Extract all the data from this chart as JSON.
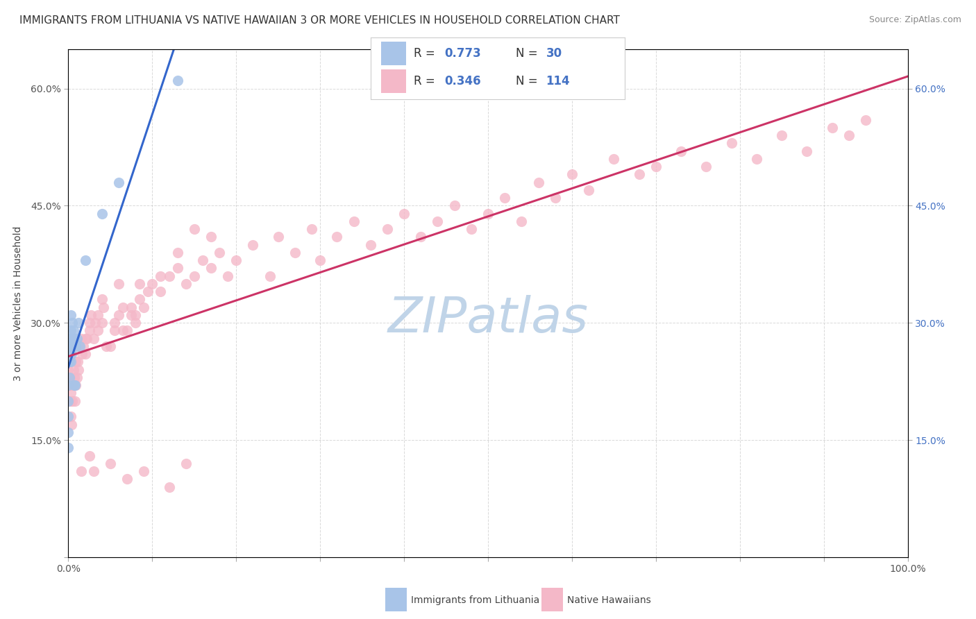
{
  "title": "IMMIGRANTS FROM LITHUANIA VS NATIVE HAWAIIAN 3 OR MORE VEHICLES IN HOUSEHOLD CORRELATION CHART",
  "source": "Source: ZipAtlas.com",
  "ylabel": "3 or more Vehicles in Household",
  "xlim": [
    0.0,
    1.0
  ],
  "ylim": [
    0.0,
    0.65
  ],
  "xticks": [
    0.0,
    0.1,
    0.2,
    0.3,
    0.4,
    0.5,
    0.6,
    0.7,
    0.8,
    0.9,
    1.0
  ],
  "xticklabels_bottom": [
    "0.0%",
    "",
    "",
    "",
    "",
    "",
    "",
    "",
    "",
    "",
    "100.0%"
  ],
  "yticks_left": [
    0.0,
    0.15,
    0.3,
    0.45,
    0.6
  ],
  "yticklabels_left": [
    "",
    "15.0%",
    "30.0%",
    "45.0%",
    "60.0%"
  ],
  "yticks_right": [
    0.15,
    0.3,
    0.45,
    0.6
  ],
  "yticklabels_right": [
    "15.0%",
    "30.0%",
    "45.0%",
    "60.0%"
  ],
  "legend_blue_R": "0.773",
  "legend_blue_N": "30",
  "legend_pink_R": "0.346",
  "legend_pink_N": "114",
  "legend_label_blue": "Immigrants from Lithuania",
  "legend_label_pink": "Native Hawaiians",
  "blue_dot_color": "#a8c4e8",
  "pink_dot_color": "#f4b8c8",
  "blue_line_color": "#3366cc",
  "pink_line_color": "#cc3366",
  "watermark": "ZIPatlas",
  "watermark_color": "#c0d4e8",
  "watermark_fontsize": 52,
  "background_color": "#ffffff",
  "grid_color": "#d0d0d0",
  "title_fontsize": 11,
  "tick_fontsize": 10,
  "stat_text_color": "#4472c4",
  "blue_scatter_x": [
    0.0,
    0.0,
    0.0,
    0.0,
    0.0,
    0.001,
    0.001,
    0.002,
    0.002,
    0.002,
    0.003,
    0.003,
    0.003,
    0.003,
    0.004,
    0.004,
    0.005,
    0.005,
    0.006,
    0.007,
    0.007,
    0.008,
    0.009,
    0.01,
    0.012,
    0.014,
    0.02,
    0.04,
    0.06,
    0.13
  ],
  "blue_scatter_y": [
    0.14,
    0.16,
    0.18,
    0.2,
    0.22,
    0.23,
    0.25,
    0.26,
    0.27,
    0.28,
    0.25,
    0.27,
    0.29,
    0.31,
    0.26,
    0.28,
    0.27,
    0.3,
    0.29,
    0.22,
    0.28,
    0.22,
    0.27,
    0.28,
    0.3,
    0.27,
    0.38,
    0.44,
    0.48,
    0.61
  ],
  "pink_scatter_x": [
    0.0,
    0.0,
    0.001,
    0.001,
    0.002,
    0.002,
    0.003,
    0.003,
    0.004,
    0.005,
    0.005,
    0.006,
    0.007,
    0.008,
    0.009,
    0.009,
    0.01,
    0.011,
    0.012,
    0.013,
    0.015,
    0.016,
    0.018,
    0.02,
    0.022,
    0.025,
    0.027,
    0.03,
    0.032,
    0.035,
    0.04,
    0.042,
    0.05,
    0.055,
    0.06,
    0.065,
    0.07,
    0.075,
    0.08,
    0.085,
    0.09,
    0.1,
    0.11,
    0.12,
    0.13,
    0.14,
    0.15,
    0.16,
    0.17,
    0.18,
    0.19,
    0.2,
    0.22,
    0.24,
    0.25,
    0.27,
    0.29,
    0.3,
    0.32,
    0.34,
    0.36,
    0.38,
    0.4,
    0.42,
    0.44,
    0.46,
    0.48,
    0.5,
    0.52,
    0.54,
    0.56,
    0.58,
    0.6,
    0.62,
    0.65,
    0.68,
    0.7,
    0.73,
    0.76,
    0.79,
    0.82,
    0.85,
    0.88,
    0.91,
    0.93,
    0.95,
    0.025,
    0.04,
    0.06,
    0.055,
    0.08,
    0.095,
    0.11,
    0.13,
    0.15,
    0.17,
    0.02,
    0.035,
    0.045,
    0.065,
    0.075,
    0.085,
    0.015,
    0.025,
    0.03,
    0.05,
    0.07,
    0.09,
    0.12,
    0.14
  ],
  "pink_scatter_y": [
    0.24,
    0.27,
    0.22,
    0.25,
    0.2,
    0.23,
    0.18,
    0.21,
    0.17,
    0.2,
    0.22,
    0.24,
    0.23,
    0.2,
    0.22,
    0.25,
    0.23,
    0.25,
    0.24,
    0.27,
    0.28,
    0.26,
    0.27,
    0.26,
    0.28,
    0.29,
    0.31,
    0.28,
    0.3,
    0.29,
    0.3,
    0.32,
    0.27,
    0.3,
    0.31,
    0.32,
    0.29,
    0.31,
    0.3,
    0.33,
    0.32,
    0.35,
    0.34,
    0.36,
    0.37,
    0.35,
    0.36,
    0.38,
    0.37,
    0.39,
    0.36,
    0.38,
    0.4,
    0.36,
    0.41,
    0.39,
    0.42,
    0.38,
    0.41,
    0.43,
    0.4,
    0.42,
    0.44,
    0.41,
    0.43,
    0.45,
    0.42,
    0.44,
    0.46,
    0.43,
    0.48,
    0.46,
    0.49,
    0.47,
    0.51,
    0.49,
    0.5,
    0.52,
    0.5,
    0.53,
    0.51,
    0.54,
    0.52,
    0.55,
    0.54,
    0.56,
    0.3,
    0.33,
    0.35,
    0.29,
    0.31,
    0.34,
    0.36,
    0.39,
    0.42,
    0.41,
    0.28,
    0.31,
    0.27,
    0.29,
    0.32,
    0.35,
    0.11,
    0.13,
    0.11,
    0.12,
    0.1,
    0.11,
    0.09,
    0.12
  ]
}
